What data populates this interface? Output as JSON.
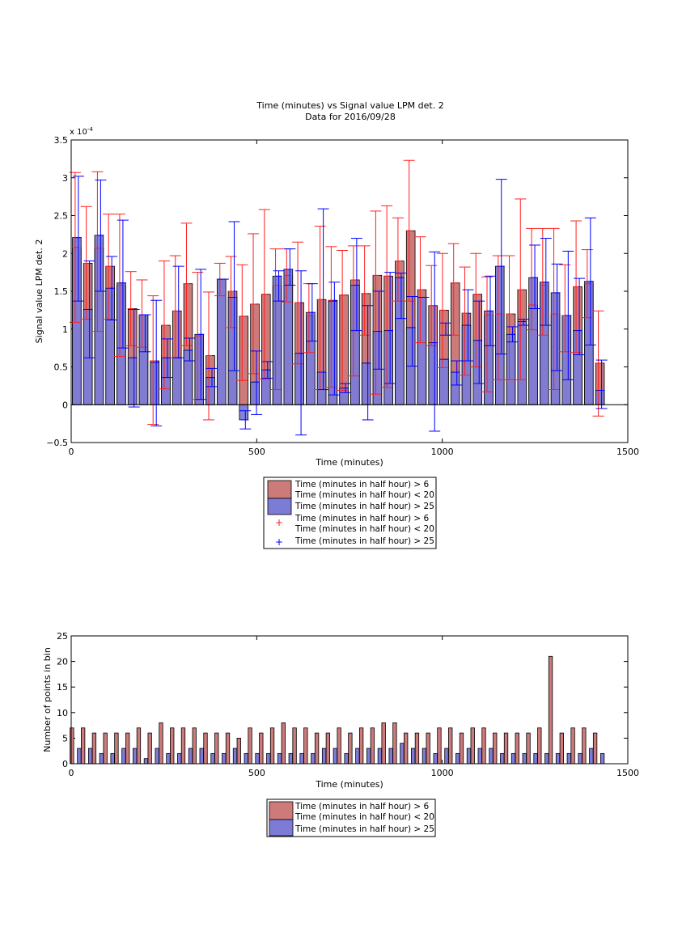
{
  "chart_data": [
    {
      "type": "bar",
      "title": "Time (minutes) vs Signal value LPM det. 2",
      "subtitle": "Data for 2016/09/28",
      "xlabel": "Time (minutes)",
      "ylabel": "Signal value LPM det. 2",
      "exponent_label": "x 10",
      "exponent_power": "-4",
      "xlim": [
        0,
        1500
      ],
      "ylim": [
        -0.5,
        3.5
      ],
      "y_scale_factor": 0.0001,
      "x_ticks": [
        "0",
        "500",
        "1000",
        "1500"
      ],
      "y_ticks": [
        "−0.5",
        "0",
        "0.5",
        "1",
        "1.5",
        "2",
        "2.5",
        "3",
        "3.5"
      ],
      "legend_placement": "below",
      "x": [
        15,
        45,
        75,
        105,
        135,
        165,
        195,
        225,
        255,
        285,
        315,
        345,
        375,
        405,
        435,
        465,
        495,
        525,
        555,
        585,
        615,
        645,
        675,
        705,
        735,
        765,
        795,
        825,
        855,
        885,
        915,
        945,
        975,
        1005,
        1035,
        1065,
        1095,
        1125,
        1155,
        1185,
        1215,
        1245,
        1275,
        1305,
        1335,
        1365,
        1395,
        1425
      ],
      "series": [
        {
          "name": "Time (minutes in half hour) > 6\nTime (minutes in half hour) < 20",
          "color": "#cc7a7a",
          "err_color": "#ff2020",
          "values": [
            2.08,
            1.87,
            2.07,
            1.83,
            1.58,
            1.27,
            1.19,
            0.58,
            1.05,
            1.24,
            1.6,
            0.91,
            0.65,
            1.66,
            1.5,
            1.17,
            1.33,
            1.46,
            1.58,
            1.71,
            1.35,
            1.18,
            1.39,
            1.38,
            1.45,
            1.65,
            1.47,
            1.71,
            1.7,
            1.9,
            2.3,
            1.52,
            1.31,
            1.25,
            1.61,
            1.21,
            1.46,
            1.19,
            1.2,
            1.2,
            1.52,
            1.32,
            1.58,
            1.2,
            1.18,
            1.56,
            1.6,
            0.55
          ],
          "err_low": [
            1.09,
            1.13,
            0.97,
            1.13,
            0.64,
            0.78,
            0.76,
            -0.26,
            0.21,
            0.62,
            0.78,
            0.07,
            -0.2,
            1.44,
            1.02,
            0.32,
            0.41,
            0.34,
            0.2,
            1.36,
            0.54,
            0.69,
            0.2,
            0.23,
            0.19,
            0.38,
            0.92,
            0.14,
            0.23,
            1.37,
            1.37,
            0.82,
            0.78,
            0.49,
            0.92,
            0.39,
            0.5,
            0.17,
            0.33,
            0.33,
            0.33,
            0.99,
            0.92,
            0.2,
            0.7,
            0.69,
            1.15,
            -0.15
          ],
          "err_high": [
            3.07,
            2.62,
            3.08,
            2.52,
            2.52,
            1.76,
            1.65,
            1.44,
            1.9,
            1.97,
            2.4,
            1.75,
            1.49,
            1.87,
            1.96,
            1.85,
            2.26,
            2.58,
            2.06,
            2.06,
            2.15,
            1.6,
            2.36,
            2.09,
            2.04,
            2.1,
            2.1,
            2.56,
            2.63,
            2.47,
            3.23,
            2.22,
            1.84,
            2.0,
            2.13,
            1.82,
            2.0,
            1.69,
            1.97,
            1.97,
            2.72,
            2.33,
            2.33,
            2.33,
            1.85,
            2.43,
            2.05,
            1.24
          ]
        },
        {
          "name": "Time (minutes in half hour) > 25",
          "color": "#7c7cd6",
          "err_color": "#0000ff",
          "values": [
            2.21,
            1.26,
            2.24,
            1.54,
            1.61,
            0.62,
            1.19,
            0.56,
            0.62,
            0.62,
            0.72,
            0.93,
            0.36,
            1.66,
            1.42,
            -0.2,
            0.3,
            0.46,
            1.7,
            1.79,
            0.68,
            1.22,
            0.43,
            1.37,
            0.22,
            1.58,
            0.55,
            0.97,
            0.98,
            1.68,
            1.02,
            1.42,
            0.82,
            0.6,
            0.43,
            1.05,
            0.85,
            1.24,
            1.83,
            0.93,
            1.1,
            1.68,
            1.62,
            1.48,
            1.18,
            0.98,
            1.63,
            0.19
          ],
          "err_low": [
            1.37,
            0.62,
            1.5,
            1.12,
            0.75,
            -0.03,
            0.7,
            -0.28,
            0.36,
            0.62,
            0.58,
            0.07,
            0.24,
            1.66,
            0.45,
            -0.32,
            -0.13,
            0.35,
            1.37,
            1.58,
            -0.4,
            0.84,
            0.2,
            0.13,
            0.16,
            0.98,
            -0.2,
            0.47,
            0.28,
            1.14,
            0.51,
            1.42,
            -0.35,
            0.92,
            0.26,
            0.58,
            0.28,
            0.78,
            0.67,
            0.83,
            1.05,
            1.27,
            1.05,
            0.45,
            0.33,
            0.66,
            0.79,
            -0.05
          ],
          "err_high": [
            3.02,
            1.9,
            2.97,
            1.96,
            2.44,
            1.26,
            1.19,
            1.38,
            0.87,
            1.83,
            0.88,
            1.79,
            0.48,
            1.66,
            2.42,
            -0.08,
            0.71,
            0.57,
            1.77,
            2.06,
            1.77,
            1.6,
            2.59,
            1.62,
            0.28,
            2.2,
            1.31,
            1.5,
            1.75,
            1.74,
            1.43,
            1.42,
            2.02,
            1.08,
            0.58,
            1.52,
            1.37,
            1.7,
            2.98,
            1.03,
            1.13,
            2.11,
            2.2,
            1.86,
            2.03,
            1.67,
            2.47,
            0.59
          ]
        }
      ]
    },
    {
      "type": "bar",
      "xlabel": "Time (minutes)",
      "ylabel": "Number of points in bin",
      "xlim": [
        0,
        1500
      ],
      "ylim": [
        0,
        25
      ],
      "x_ticks": [
        "0",
        "500",
        "1000",
        "1500"
      ],
      "y_ticks": [
        "0",
        "5",
        "10",
        "15",
        "20",
        "25"
      ],
      "legend_placement": "below",
      "x": [
        15,
        45,
        75,
        105,
        135,
        165,
        195,
        225,
        255,
        285,
        315,
        345,
        375,
        405,
        435,
        465,
        495,
        525,
        555,
        585,
        615,
        645,
        675,
        705,
        735,
        765,
        795,
        825,
        855,
        885,
        915,
        945,
        975,
        1005,
        1035,
        1065,
        1095,
        1125,
        1155,
        1185,
        1215,
        1245,
        1275,
        1305,
        1335,
        1365,
        1395,
        1425
      ],
      "series": [
        {
          "name": "Time (minutes in half hour) > 6\nTime (minutes in half hour) < 20",
          "color": "#cc7a7a",
          "values": [
            7,
            7,
            6,
            6,
            6,
            6,
            7,
            6,
            8,
            7,
            7,
            7,
            6,
            6,
            6,
            5,
            7,
            6,
            7,
            8,
            7,
            7,
            6,
            6,
            7,
            6,
            7,
            7,
            8,
            8,
            6,
            6,
            6,
            7,
            7,
            6,
            7,
            7,
            6,
            6,
            6,
            6,
            7,
            21,
            6,
            7,
            7,
            6
          ]
        },
        {
          "name": "Time (minutes in half hour) > 25",
          "color": "#7c7cd6",
          "values": [
            3,
            3,
            2,
            2,
            3,
            3,
            1,
            3,
            2,
            2,
            3,
            3,
            2,
            2,
            3,
            2,
            2,
            2,
            2,
            2,
            2,
            2,
            3,
            3,
            2,
            3,
            3,
            3,
            3,
            4,
            3,
            3,
            2,
            3,
            2,
            3,
            3,
            3,
            2,
            2,
            2,
            2,
            2,
            2,
            2,
            2,
            3,
            2
          ]
        }
      ]
    }
  ]
}
